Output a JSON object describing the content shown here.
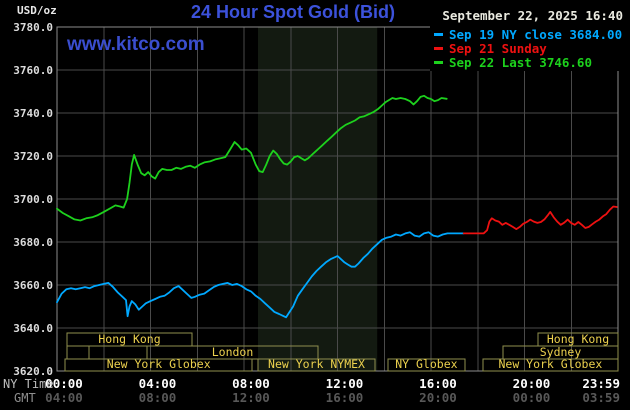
{
  "header": {
    "title": "24 Hour Spot Gold (Bid)",
    "datetime": "September 22, 2025 16:40",
    "watermark": "www.kitco.com",
    "unit_label": "USD/oz"
  },
  "axis": {
    "ny_time_label": "NY Time",
    "gmt_label": "GMT",
    "ny_ticks": [
      {
        "hour": 0,
        "label": "00:00"
      },
      {
        "hour": 4,
        "label": "04:00"
      },
      {
        "hour": 8,
        "label": "08:00"
      },
      {
        "hour": 12,
        "label": "12:00"
      },
      {
        "hour": 16,
        "label": "16:00"
      },
      {
        "hour": 20,
        "label": "20:00"
      },
      {
        "hour": 23.983,
        "label": "23:59",
        "align": "right"
      }
    ],
    "gmt_ticks": [
      {
        "hour": 0,
        "label": "04:00"
      },
      {
        "hour": 4,
        "label": "08:00"
      },
      {
        "hour": 8,
        "label": "12:00"
      },
      {
        "hour": 12,
        "label": "16:00"
      },
      {
        "hour": 16,
        "label": "20:00"
      },
      {
        "hour": 20,
        "label": "00:00"
      },
      {
        "hour": 23.983,
        "label": "03:59",
        "align": "right"
      }
    ],
    "y_ticks": [
      {
        "v": 3780,
        "label": "3780.0"
      },
      {
        "v": 3760,
        "label": "3760.0"
      },
      {
        "v": 3740,
        "label": "3740.0"
      },
      {
        "v": 3720,
        "label": "3720.0"
      },
      {
        "v": 3700,
        "label": "3700.0"
      },
      {
        "v": 3680,
        "label": "3680.0"
      },
      {
        "v": 3660,
        "label": "3660.0"
      },
      {
        "v": 3640,
        "label": "3640.0"
      },
      {
        "v": 3620,
        "label": "3620.0"
      }
    ]
  },
  "sessions": {
    "rows": [
      {
        "boxes": [
          {
            "from": 0.42,
            "to": 5.78,
            "label": "Hong Kong"
          },
          {
            "from": 20.58,
            "to": 24,
            "label": "Hong Kong"
          }
        ]
      },
      {
        "boxes": [
          {
            "from": 0.42,
            "to": 1.36,
            "label": ""
          },
          {
            "from": 1.36,
            "to": 3.85,
            "label": ""
          },
          {
            "from": 3.85,
            "to": 11.17,
            "label": "London"
          },
          {
            "from": 19.08,
            "to": 24,
            "label": "Sydney"
          }
        ]
      },
      {
        "boxes": [
          {
            "from": 0.35,
            "to": 8.35,
            "label": "New York Globex"
          },
          {
            "from": 8.6,
            "to": 13.6,
            "label": "New York NYMEX"
          },
          {
            "from": 14.16,
            "to": 17.45,
            "label": "NY Globex"
          },
          {
            "from": 18.22,
            "to": 24,
            "label": "New York Globex"
          }
        ]
      }
    ]
  },
  "colors": {
    "background": "#000000",
    "title_blue": "#3c52db",
    "watermark_blue": "#3a4ecf",
    "grid": "#4a4a4a",
    "border": "#8c8c8c",
    "band": "#131a11",
    "session_outline": "#8f8f4e",
    "session_text": "#ecd14e",
    "cyan": "#00a8ff",
    "red": "#ee1111",
    "green": "#1dd11d",
    "white_text": "#e8e8e8",
    "gmt_text": "#585858"
  },
  "chart_data": {
    "type": "line",
    "title": "24 Hour Spot Gold (Bid)",
    "xlabel": "NY Time",
    "ylabel": "USD/oz",
    "x_range_hours": [
      0,
      24
    ],
    "x_gridline_every_hours": 2,
    "ylim": [
      3620,
      3780
    ],
    "y_tick_step": 20,
    "grid": true,
    "legend_position": "top-right",
    "highlight_band_hours": {
      "from": 8.6,
      "to": 13.7,
      "meaning": "New York NYMEX session"
    },
    "series": [
      {
        "name": "sep19-ny-close",
        "legend": "Sep 19 NY close 3684.00",
        "close_value": 3684.0,
        "color": "#00a8ff",
        "points": [
          [
            0,
            3652
          ],
          [
            0.2,
            3656
          ],
          [
            0.4,
            3658
          ],
          [
            0.6,
            3658.5
          ],
          [
            0.8,
            3658
          ],
          [
            1.0,
            3658.5
          ],
          [
            1.2,
            3659
          ],
          [
            1.4,
            3658.5
          ],
          [
            1.6,
            3659.5
          ],
          [
            1.8,
            3660
          ],
          [
            2.0,
            3660.5
          ],
          [
            2.2,
            3661
          ],
          [
            2.4,
            3659
          ],
          [
            2.6,
            3656.5
          ],
          [
            2.8,
            3654.5
          ],
          [
            2.95,
            3653
          ],
          [
            3.02,
            3645.5
          ],
          [
            3.1,
            3650
          ],
          [
            3.2,
            3652.5
          ],
          [
            3.35,
            3651
          ],
          [
            3.5,
            3648.5
          ],
          [
            3.65,
            3650
          ],
          [
            3.8,
            3651.5
          ],
          [
            4.0,
            3652.5
          ],
          [
            4.2,
            3653.5
          ],
          [
            4.4,
            3654.5
          ],
          [
            4.6,
            3655
          ],
          [
            4.8,
            3656.5
          ],
          [
            5.0,
            3658.5
          ],
          [
            5.2,
            3659.5
          ],
          [
            5.35,
            3658
          ],
          [
            5.55,
            3656
          ],
          [
            5.75,
            3654
          ],
          [
            5.9,
            3654.5
          ],
          [
            6.1,
            3655.5
          ],
          [
            6.3,
            3656
          ],
          [
            6.5,
            3657.5
          ],
          [
            6.7,
            3659
          ],
          [
            6.9,
            3660
          ],
          [
            7.1,
            3660.5
          ],
          [
            7.3,
            3661
          ],
          [
            7.5,
            3660
          ],
          [
            7.7,
            3660.5
          ],
          [
            7.9,
            3659.5
          ],
          [
            8.1,
            3658
          ],
          [
            8.3,
            3657
          ],
          [
            8.5,
            3655
          ],
          [
            8.7,
            3653.5
          ],
          [
            8.9,
            3651.5
          ],
          [
            9.1,
            3649.5
          ],
          [
            9.3,
            3647.5
          ],
          [
            9.5,
            3646.5
          ],
          [
            9.7,
            3645.5
          ],
          [
            9.8,
            3645
          ],
          [
            9.95,
            3647.5
          ],
          [
            10.1,
            3650
          ],
          [
            10.3,
            3655
          ],
          [
            10.5,
            3658
          ],
          [
            10.7,
            3661
          ],
          [
            10.9,
            3664
          ],
          [
            11.1,
            3666.5
          ],
          [
            11.3,
            3668.5
          ],
          [
            11.5,
            3670.5
          ],
          [
            11.7,
            3672
          ],
          [
            11.9,
            3673
          ],
          [
            12.0,
            3673.5
          ],
          [
            12.15,
            3672
          ],
          [
            12.3,
            3670.5
          ],
          [
            12.45,
            3669.5
          ],
          [
            12.6,
            3668.5
          ],
          [
            12.75,
            3668.5
          ],
          [
            12.9,
            3670
          ],
          [
            13.1,
            3672.5
          ],
          [
            13.3,
            3674.5
          ],
          [
            13.5,
            3677
          ],
          [
            13.7,
            3679
          ],
          [
            13.9,
            3681
          ],
          [
            14.1,
            3682
          ],
          [
            14.3,
            3682.5
          ],
          [
            14.5,
            3683.5
          ],
          [
            14.7,
            3683
          ],
          [
            14.9,
            3684
          ],
          [
            15.1,
            3684.5
          ],
          [
            15.3,
            3683
          ],
          [
            15.5,
            3682.5
          ],
          [
            15.7,
            3684
          ],
          [
            15.9,
            3684.5
          ],
          [
            16.1,
            3683
          ],
          [
            16.3,
            3682.5
          ],
          [
            16.5,
            3683.5
          ],
          [
            16.7,
            3684
          ],
          [
            16.9,
            3684
          ],
          [
            17.1,
            3684
          ],
          [
            17.4,
            3684
          ]
        ]
      },
      {
        "name": "sep21-sunday",
        "legend": "Sep 21 Sunday",
        "color": "#ee1111",
        "points": [
          [
            17.4,
            3684
          ],
          [
            17.7,
            3684
          ],
          [
            18.0,
            3684
          ],
          [
            18.25,
            3684
          ],
          [
            18.4,
            3685.5
          ],
          [
            18.5,
            3689.5
          ],
          [
            18.6,
            3691
          ],
          [
            18.75,
            3690
          ],
          [
            18.9,
            3689.5
          ],
          [
            19.05,
            3688
          ],
          [
            19.2,
            3688.9
          ],
          [
            19.35,
            3688
          ],
          [
            19.5,
            3687
          ],
          [
            19.65,
            3686
          ],
          [
            19.8,
            3687
          ],
          [
            19.95,
            3688.5
          ],
          [
            20.1,
            3689.3
          ],
          [
            20.25,
            3690.4
          ],
          [
            20.4,
            3689.5
          ],
          [
            20.55,
            3688.9
          ],
          [
            20.7,
            3689.3
          ],
          [
            20.85,
            3690.5
          ],
          [
            21.0,
            3692.5
          ],
          [
            21.1,
            3694
          ],
          [
            21.25,
            3691.5
          ],
          [
            21.4,
            3689.5
          ],
          [
            21.55,
            3688
          ],
          [
            21.7,
            3689
          ],
          [
            21.85,
            3690.4
          ],
          [
            22.0,
            3688.8
          ],
          [
            22.15,
            3688
          ],
          [
            22.3,
            3689.3
          ],
          [
            22.45,
            3688
          ],
          [
            22.6,
            3686.5
          ],
          [
            22.75,
            3687
          ],
          [
            22.9,
            3688.3
          ],
          [
            23.05,
            3689.5
          ],
          [
            23.2,
            3690.4
          ],
          [
            23.35,
            3691.9
          ],
          [
            23.5,
            3693
          ],
          [
            23.65,
            3695
          ],
          [
            23.8,
            3696.5
          ],
          [
            23.95,
            3696.3
          ]
        ]
      },
      {
        "name": "sep22-last",
        "legend": "Sep 22 Last 3746.60",
        "last_value": 3746.6,
        "color": "#1dd11d",
        "points": [
          [
            0,
            3695.5
          ],
          [
            0.25,
            3693.5
          ],
          [
            0.5,
            3692
          ],
          [
            0.75,
            3690.5
          ],
          [
            1.0,
            3690
          ],
          [
            1.25,
            3691
          ],
          [
            1.5,
            3691.5
          ],
          [
            1.75,
            3692.5
          ],
          [
            2.0,
            3694
          ],
          [
            2.25,
            3695.5
          ],
          [
            2.5,
            3697
          ],
          [
            2.7,
            3696.5
          ],
          [
            2.85,
            3696
          ],
          [
            3.0,
            3700
          ],
          [
            3.1,
            3707.5
          ],
          [
            3.2,
            3716
          ],
          [
            3.3,
            3720.5
          ],
          [
            3.45,
            3716
          ],
          [
            3.6,
            3712
          ],
          [
            3.75,
            3711
          ],
          [
            3.9,
            3712.5
          ],
          [
            4.05,
            3710.5
          ],
          [
            4.2,
            3709.5
          ],
          [
            4.35,
            3712.5
          ],
          [
            4.5,
            3714
          ],
          [
            4.7,
            3713.5
          ],
          [
            4.9,
            3713.5
          ],
          [
            5.1,
            3714.5
          ],
          [
            5.3,
            3714
          ],
          [
            5.5,
            3715
          ],
          [
            5.7,
            3715.5
          ],
          [
            5.9,
            3714.5
          ],
          [
            6.1,
            3716
          ],
          [
            6.3,
            3717
          ],
          [
            6.55,
            3717.5
          ],
          [
            6.8,
            3718.5
          ],
          [
            7.0,
            3719
          ],
          [
            7.2,
            3719.5
          ],
          [
            7.4,
            3723
          ],
          [
            7.6,
            3726.5
          ],
          [
            7.75,
            3725
          ],
          [
            7.9,
            3723
          ],
          [
            8.1,
            3723.5
          ],
          [
            8.3,
            3721.5
          ],
          [
            8.5,
            3716
          ],
          [
            8.65,
            3713
          ],
          [
            8.8,
            3712.5
          ],
          [
            8.95,
            3716
          ],
          [
            9.1,
            3720
          ],
          [
            9.25,
            3722.5
          ],
          [
            9.4,
            3721
          ],
          [
            9.55,
            3718.5
          ],
          [
            9.7,
            3716.5
          ],
          [
            9.85,
            3716
          ],
          [
            10.0,
            3717.5
          ],
          [
            10.15,
            3719.5
          ],
          [
            10.3,
            3720
          ],
          [
            10.45,
            3719
          ],
          [
            10.6,
            3718
          ],
          [
            10.75,
            3719
          ],
          [
            10.9,
            3720.5
          ],
          [
            11.05,
            3722
          ],
          [
            11.2,
            3723.5
          ],
          [
            11.35,
            3725
          ],
          [
            11.55,
            3727
          ],
          [
            11.75,
            3729
          ],
          [
            11.95,
            3731
          ],
          [
            12.15,
            3733
          ],
          [
            12.35,
            3734.5
          ],
          [
            12.55,
            3735.5
          ],
          [
            12.75,
            3736.5
          ],
          [
            12.95,
            3738
          ],
          [
            13.15,
            3738.5
          ],
          [
            13.35,
            3739.5
          ],
          [
            13.55,
            3740.5
          ],
          [
            13.75,
            3742
          ],
          [
            13.9,
            3743.5
          ],
          [
            14.05,
            3745
          ],
          [
            14.2,
            3746
          ],
          [
            14.35,
            3747
          ],
          [
            14.5,
            3746.5
          ],
          [
            14.7,
            3747
          ],
          [
            14.9,
            3746.5
          ],
          [
            15.1,
            3745.5
          ],
          [
            15.25,
            3744
          ],
          [
            15.4,
            3745.5
          ],
          [
            15.55,
            3747.5
          ],
          [
            15.7,
            3748
          ],
          [
            15.85,
            3747
          ],
          [
            16.0,
            3746.5
          ],
          [
            16.15,
            3745.5
          ],
          [
            16.3,
            3746
          ],
          [
            16.45,
            3747
          ],
          [
            16.67,
            3746.6
          ]
        ]
      }
    ]
  }
}
